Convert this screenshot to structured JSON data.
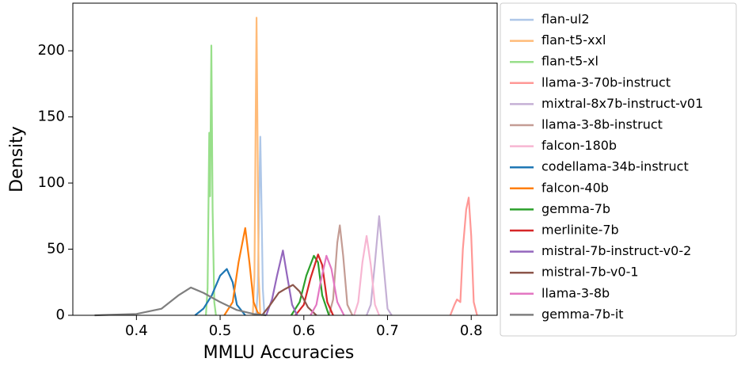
{
  "chart_data": {
    "type": "line",
    "xlabel": "MMLU Accuracies",
    "ylabel": "Density",
    "xlim": [
      0.324,
      0.831
    ],
    "ylim": [
      0,
      236
    ],
    "xticks": [
      0.4,
      0.5,
      0.6,
      0.7,
      0.8
    ],
    "yticks": [
      0,
      50,
      100,
      150,
      200
    ],
    "legend": "outside-right",
    "series": [
      {
        "name": "flan-ul2",
        "color": "#aec7e8",
        "x": [
          0.543,
          0.545,
          0.547,
          0.548,
          0.549,
          0.551,
          0.553
        ],
        "values": [
          0,
          20,
          100,
          135,
          100,
          20,
          0
        ]
      },
      {
        "name": "flan-t5-xxl",
        "color": "#ffbb78",
        "x": [
          0.539,
          0.541,
          0.5425,
          0.5435,
          0.5445,
          0.546,
          0.548
        ],
        "values": [
          0,
          30,
          150,
          225,
          150,
          30,
          0
        ]
      },
      {
        "name": "flan-t5-xl",
        "color": "#98df8a",
        "x": [
          0.483,
          0.485,
          0.487,
          0.488,
          0.4895,
          0.491,
          0.493,
          0.495
        ],
        "values": [
          0,
          20,
          138,
          90,
          204,
          80,
          10,
          0
        ]
      },
      {
        "name": "llama-3-70b-instruct",
        "color": "#ff9896",
        "x": [
          0.775,
          0.78,
          0.783,
          0.787,
          0.79,
          0.794,
          0.797,
          0.8,
          0.803,
          0.807
        ],
        "values": [
          0,
          8,
          12,
          10,
          50,
          80,
          89,
          60,
          10,
          0
        ]
      },
      {
        "name": "mixtral-8x7b-instruct-v01",
        "color": "#c5b0d5",
        "x": [
          0.675,
          0.68,
          0.685,
          0.69,
          0.695,
          0.7,
          0.705
        ],
        "values": [
          0,
          8,
          40,
          75,
          40,
          5,
          0
        ]
      },
      {
        "name": "llama-3-8b-instruct",
        "color": "#c49c94",
        "x": [
          0.63,
          0.635,
          0.64,
          0.643,
          0.647,
          0.652,
          0.658
        ],
        "values": [
          0,
          12,
          55,
          68,
          45,
          8,
          0
        ]
      },
      {
        "name": "falcon-180b",
        "color": "#f7b6d2",
        "x": [
          0.66,
          0.665,
          0.67,
          0.675,
          0.68,
          0.685,
          0.69
        ],
        "values": [
          0,
          10,
          40,
          60,
          38,
          8,
          0
        ]
      },
      {
        "name": "codellama-34b-instruct",
        "color": "#1f77b4",
        "x": [
          0.47,
          0.48,
          0.49,
          0.5,
          0.508,
          0.515,
          0.52,
          0.53
        ],
        "values": [
          0,
          5,
          15,
          30,
          35,
          25,
          8,
          0
        ]
      },
      {
        "name": "falcon-40b",
        "color": "#ff7f0e",
        "x": [
          0.505,
          0.515,
          0.522,
          0.53,
          0.535,
          0.54,
          0.545,
          0.55
        ],
        "values": [
          0,
          10,
          40,
          66,
          40,
          10,
          2,
          0
        ]
      },
      {
        "name": "gemma-7b",
        "color": "#2ca02c",
        "x": [
          0.585,
          0.595,
          0.603,
          0.612,
          0.617,
          0.622,
          0.63
        ],
        "values": [
          0,
          10,
          30,
          45,
          40,
          15,
          0
        ]
      },
      {
        "name": "merlinite-7b",
        "color": "#d62728",
        "x": [
          0.59,
          0.6,
          0.608,
          0.617,
          0.622,
          0.628,
          0.635
        ],
        "values": [
          0,
          8,
          28,
          46,
          38,
          10,
          0
        ]
      },
      {
        "name": "mistral-7b-instruct-v0-2",
        "color": "#9467bd",
        "x": [
          0.555,
          0.562,
          0.568,
          0.575,
          0.58,
          0.586,
          0.592
        ],
        "values": [
          0,
          12,
          30,
          49,
          30,
          8,
          0
        ]
      },
      {
        "name": "mistral-7b-v0-1",
        "color": "#8c564b",
        "x": [
          0.55,
          0.56,
          0.57,
          0.578,
          0.587,
          0.595,
          0.605,
          0.615
        ],
        "values": [
          0,
          8,
          17,
          20,
          23,
          18,
          6,
          0
        ]
      },
      {
        "name": "llama-3-8b",
        "color": "#e377c2",
        "x": [
          0.608,
          0.615,
          0.62,
          0.627,
          0.633,
          0.64,
          0.648
        ],
        "values": [
          0,
          8,
          25,
          45,
          35,
          10,
          0
        ]
      },
      {
        "name": "gemma-7b-it",
        "color": "#7f7f7f",
        "x": [
          0.35,
          0.4,
          0.43,
          0.45,
          0.465,
          0.48,
          0.5,
          0.52,
          0.54,
          0.555
        ],
        "values": [
          0,
          1,
          5,
          15,
          21,
          17,
          10,
          4,
          1,
          0
        ]
      }
    ]
  }
}
